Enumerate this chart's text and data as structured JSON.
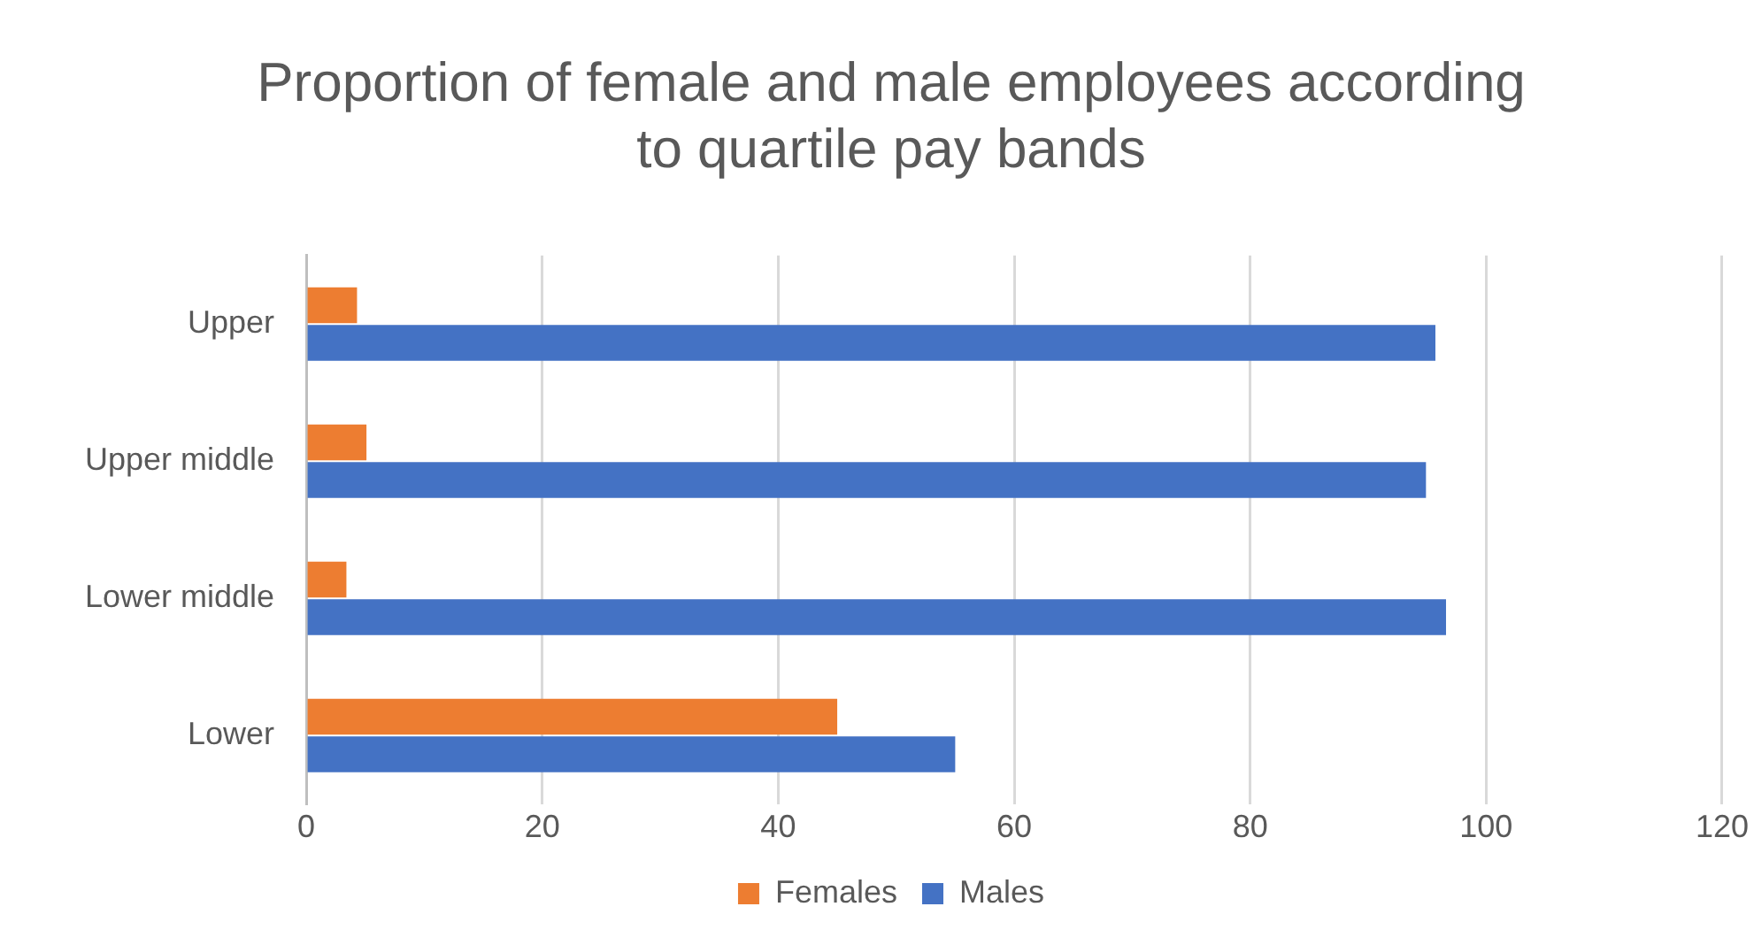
{
  "chart_data": {
    "type": "bar",
    "orientation": "horizontal",
    "title": [
      "Proportion of female and male employees according",
      "to quartile pay bands"
    ],
    "categories": [
      "Upper",
      "Upper middle",
      "Lower middle",
      "Lower"
    ],
    "series": [
      {
        "name": "Females",
        "color": "#ed7d31",
        "values": [
          4.3,
          5.1,
          3.4,
          45
        ]
      },
      {
        "name": "Males",
        "color": "#4472c4",
        "values": [
          95.7,
          94.9,
          96.6,
          55
        ]
      }
    ],
    "xlim": [
      0,
      120
    ],
    "xticks": [
      0,
      20,
      40,
      60,
      80,
      100,
      120
    ],
    "grid": "x",
    "legend": "bottom"
  }
}
